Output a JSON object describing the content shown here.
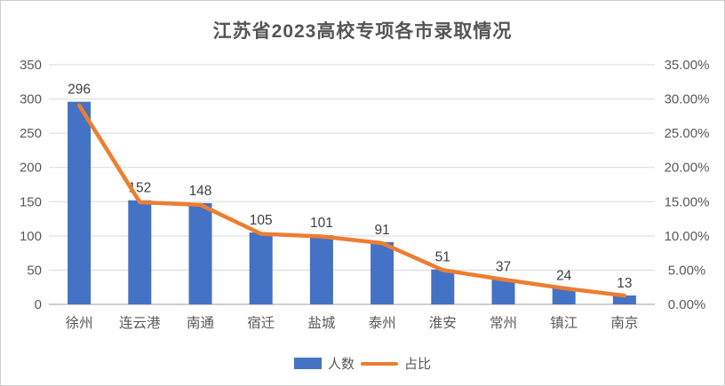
{
  "chart_data": {
    "type": "bar",
    "subtype": "bar-line-combo",
    "title": "江苏省2023高校专项各市录取情况",
    "categories": [
      "徐州",
      "连云港",
      "南通",
      "宿迁",
      "盐城",
      "泰州",
      "淮安",
      "常州",
      "镇江",
      "南京"
    ],
    "series": [
      {
        "name": "人数",
        "type": "bar",
        "axis": "left",
        "values": [
          296,
          152,
          148,
          105,
          101,
          91,
          51,
          37,
          24,
          13
        ]
      },
      {
        "name": "占比",
        "type": "line",
        "axis": "right",
        "values_percent": [
          29.08,
          14.93,
          14.54,
          10.31,
          9.92,
          8.94,
          5.01,
          3.63,
          2.36,
          1.28
        ]
      }
    ],
    "bar_labels": [
      "296",
      "152",
      "148",
      "105",
      "101",
      "91",
      "51",
      "37",
      "24",
      "13"
    ],
    "left_axis": {
      "min": 0,
      "max": 350,
      "step": 50,
      "ticks": [
        "0",
        "50",
        "100",
        "150",
        "200",
        "250",
        "300",
        "350"
      ]
    },
    "right_axis": {
      "min": 0,
      "max": 35,
      "step": 5,
      "ticks": [
        "0.00%",
        "5.00%",
        "10.00%",
        "15.00%",
        "20.00%",
        "25.00%",
        "30.00%",
        "35.00%"
      ]
    },
    "legend": [
      {
        "label": "人数",
        "swatch": "bar"
      },
      {
        "label": "占比",
        "swatch": "line"
      }
    ],
    "grid": "horizontal-on",
    "legend_position": "bottom",
    "colors": {
      "bar": "#4472C4",
      "line": "#ED7D31",
      "gridline": "#D9D9D9",
      "axis_line": "#BFBFBF",
      "axis_text": "#595959",
      "data_label": "#3F3F3F",
      "title_text": "#555555"
    }
  }
}
